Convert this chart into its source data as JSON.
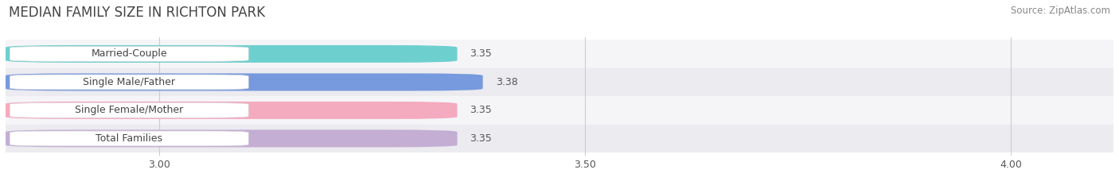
{
  "title": "MEDIAN FAMILY SIZE IN RICHTON PARK",
  "source": "Source: ZipAtlas.com",
  "categories": [
    "Married-Couple",
    "Single Male/Father",
    "Single Female/Mother",
    "Total Families"
  ],
  "values": [
    3.35,
    3.38,
    3.35,
    3.35
  ],
  "bar_colors": [
    "#6ecfcf",
    "#7799dd",
    "#f4aabf",
    "#c4aed4"
  ],
  "background_color": "#ffffff",
  "bar_bg_color": "#f0f0f5",
  "row_bg_colors": [
    "#f5f5f5",
    "#f0f0f0",
    "#f5f5f5",
    "#f0f0f0"
  ],
  "xlim": [
    2.82,
    4.12
  ],
  "xstart": 2.82,
  "xticks": [
    3.0,
    3.5,
    4.0
  ],
  "bar_height": 0.62,
  "label_fontsize": 9,
  "value_fontsize": 9,
  "title_fontsize": 12,
  "source_fontsize": 8.5
}
